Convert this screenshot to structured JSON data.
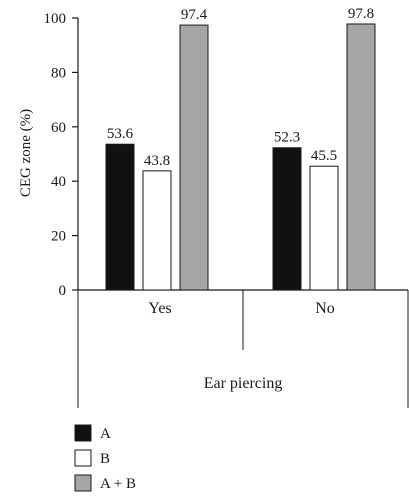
{
  "chart_data": {
    "type": "bar",
    "categories": [
      "Yes",
      "No"
    ],
    "series": [
      {
        "name": "A",
        "values": [
          53.6,
          52.3
        ],
        "color": "#111111"
      },
      {
        "name": "B",
        "values": [
          43.8,
          45.5
        ],
        "color": "#ffffff"
      },
      {
        "name": "A + B",
        "values": [
          97.4,
          97.8
        ],
        "color": "#a6a6a6"
      }
    ],
    "data_labels": [
      [
        "53.6",
        "43.8",
        "97.4"
      ],
      [
        "52.3",
        "45.5",
        "97.8"
      ]
    ],
    "ylabel": "CEG zone (%)",
    "xlabel": "Ear piercing",
    "ylim": [
      0,
      100
    ],
    "yticks": [
      0,
      20,
      40,
      60,
      80,
      100
    ],
    "grid": false,
    "legend_position": "bottom-left"
  }
}
